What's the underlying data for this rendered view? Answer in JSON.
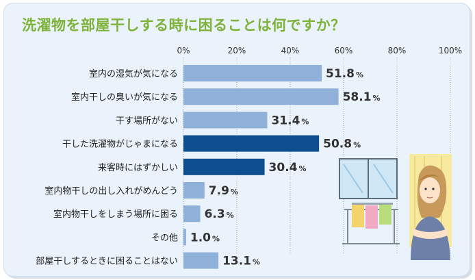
{
  "chart_data": {
    "type": "bar",
    "orientation": "horizontal",
    "title": "洗濯物を部屋干しする時に困ることは何ですか？",
    "categories": [
      "室内の湿気が気になる",
      "室内干しの臭いが気になる",
      "干す場所がない",
      "干した洗濯物がじゃまになる",
      "来客時にはずかしい",
      "室内物干しの出し入れがめんどう",
      "室内物干しをしまう場所に困る",
      "その他",
      "部屋干しするときに困ることはない"
    ],
    "values": [
      51.8,
      58.1,
      31.4,
      50.8,
      30.4,
      7.9,
      6.3,
      1.0,
      13.1
    ],
    "value_labels": [
      "51.8",
      "58.1",
      "31.4",
      "50.8",
      "30.4",
      "7.9",
      "6.3",
      "1.0",
      "13.1"
    ],
    "value_suffix": "%",
    "highlighted": [
      false,
      false,
      false,
      true,
      true,
      false,
      false,
      false,
      false
    ],
    "xlim": [
      0,
      100
    ],
    "xticks": [
      "0%",
      "20%",
      "40%",
      "60%",
      "80%",
      "100%"
    ],
    "grid": true,
    "colors": {
      "bar": "#8fb0d9",
      "bar_highlight": "#0d4f8e",
      "grid": "#9aa3ad",
      "title": "#7fb23a",
      "background": "#eaf2fb"
    }
  }
}
